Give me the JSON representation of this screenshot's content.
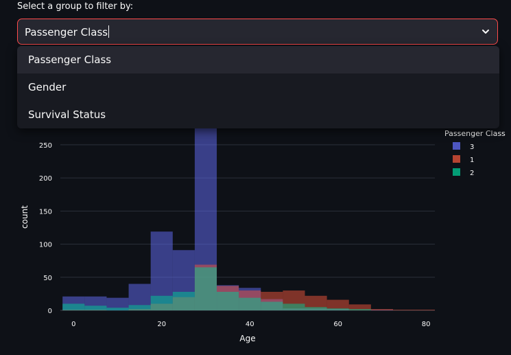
{
  "filter": {
    "label": "Select a group to filter by:",
    "selected_value": "Passenger Class",
    "options": [
      "Passenger Class",
      "Gender",
      "Survival Status"
    ],
    "chevron_icon": "chevron-down-icon"
  },
  "colors": {
    "background": "#0e1117",
    "accent_border": "#ff4b4b",
    "class_3": "#636efa",
    "class_1": "#ef553b",
    "class_2": "#00cc96"
  },
  "chart_data": {
    "type": "histogram",
    "barmode": "overlay",
    "xlabel": "Age",
    "ylabel": "count",
    "xlim": [
      -3,
      82
    ],
    "ylim": [
      0,
      280
    ],
    "xticks": [
      0,
      20,
      40,
      60,
      80
    ],
    "yticks": [
      0,
      50,
      100,
      150,
      200,
      250
    ],
    "grid": true,
    "bins": {
      "start": -2.5,
      "width": 5
    },
    "legend": {
      "title": "Passenger Class",
      "position": "top-right"
    },
    "series": [
      {
        "name": "3",
        "color": "#636efa",
        "values": [
          21,
          21,
          19,
          40,
          119,
          91,
          279,
          38,
          34,
          17,
          3,
          3,
          2,
          0,
          1,
          0,
          0
        ]
      },
      {
        "name": "1",
        "color": "#ef553b",
        "values": [
          1,
          1,
          0,
          2,
          10,
          20,
          69,
          37,
          30,
          28,
          30,
          22,
          16,
          9,
          2,
          1,
          1
        ]
      },
      {
        "name": "2",
        "color": "#00cc96",
        "values": [
          10,
          7,
          4,
          8,
          22,
          28,
          65,
          28,
          19,
          13,
          10,
          5,
          3,
          2,
          0,
          0,
          0
        ]
      }
    ]
  }
}
